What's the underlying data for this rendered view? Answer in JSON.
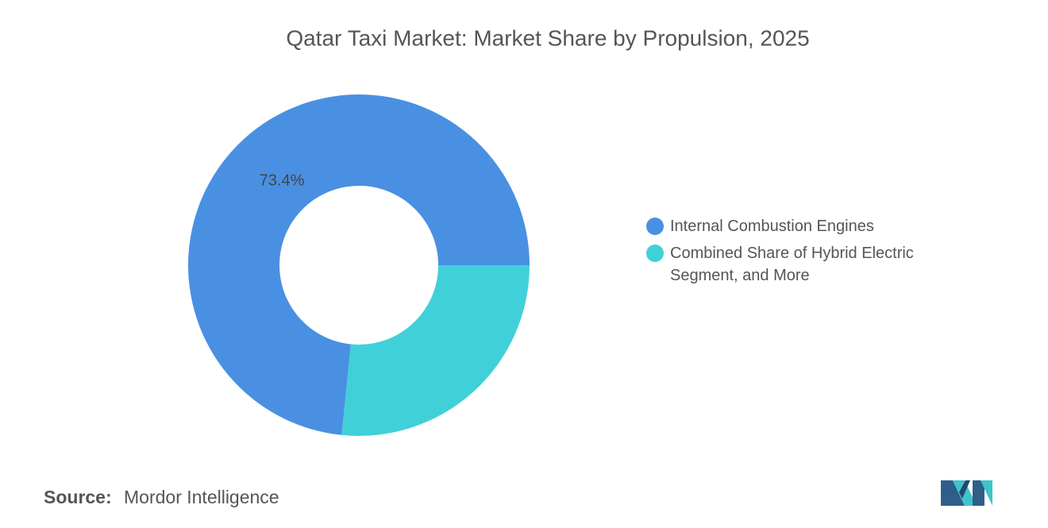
{
  "chart_data": {
    "type": "donut",
    "title": "Qatar Taxi Market: Market Share by Propulsion, 2025",
    "categories": [
      "Internal Combustion Engines",
      "Combined Share of Hybrid Electric Segment, and More"
    ],
    "values": [
      73.4,
      26.6
    ],
    "value_labels": [
      "73.4%",
      null
    ],
    "colors": [
      "#4a90e2",
      "#40d0d9"
    ],
    "source_label": "Source:",
    "source": "Mordor Intelligence"
  }
}
